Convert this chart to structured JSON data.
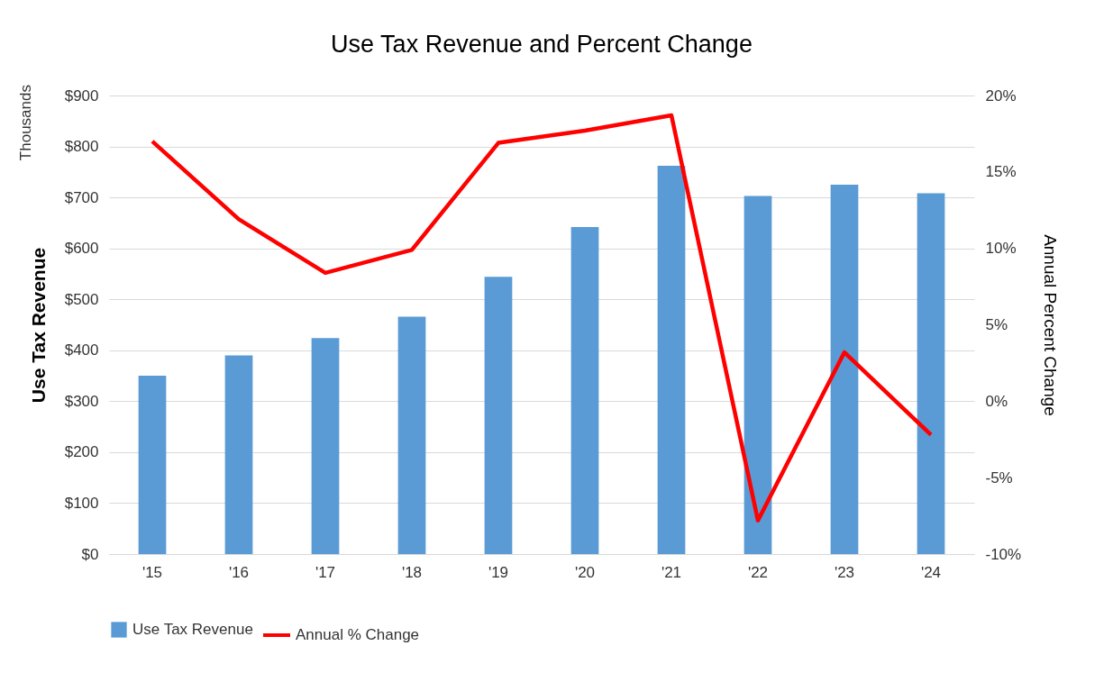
{
  "chart_data": {
    "type": "bar",
    "title": "Use Tax Revenue and Percent Change",
    "ylabel": "Use Tax Revenue",
    "y2label": "Annual Percent Change",
    "annotations": [
      "Thousands"
    ],
    "categories": [
      "'15",
      "'16",
      "'17",
      "'18",
      "'19",
      "'20",
      "'21",
      "'22",
      "'23",
      "'24"
    ],
    "series": [
      {
        "name": "Use Tax Revenue",
        "color": "#5b9bd5",
        "values": [
          350,
          390,
          424,
          466,
          544,
          642,
          762,
          703,
          725,
          708
        ]
      },
      {
        "name": "Annual % Change",
        "type": "line",
        "axis": "y2",
        "color": "#ff0000",
        "values": [
          17.0,
          11.9,
          8.4,
          9.9,
          16.9,
          17.7,
          18.7,
          -7.8,
          3.2,
          -2.2
        ]
      }
    ],
    "ylim": [
      0,
      900
    ],
    "yticks": [
      {
        "value": 0,
        "label": "$0"
      },
      {
        "value": 100,
        "label": "$100"
      },
      {
        "value": 200,
        "label": "$200"
      },
      {
        "value": 300,
        "label": "$300"
      },
      {
        "value": 400,
        "label": "$400"
      },
      {
        "value": 500,
        "label": "$500"
      },
      {
        "value": 600,
        "label": "$600"
      },
      {
        "value": 700,
        "label": "$700"
      },
      {
        "value": 800,
        "label": "$800"
      },
      {
        "value": 900,
        "label": "$900"
      }
    ],
    "y2lim": [
      -10,
      20
    ],
    "y2ticks": [
      {
        "value": -10,
        "label": "-10%"
      },
      {
        "value": -5,
        "label": "-5%"
      },
      {
        "value": 0,
        "label": "0%"
      },
      {
        "value": 5,
        "label": "5%"
      },
      {
        "value": 10,
        "label": "10%"
      },
      {
        "value": 15,
        "label": "15%"
      },
      {
        "value": 20,
        "label": "20%"
      }
    ],
    "grid": "y",
    "legend": "bottom",
    "marker": "none",
    "line_style": "solid"
  }
}
